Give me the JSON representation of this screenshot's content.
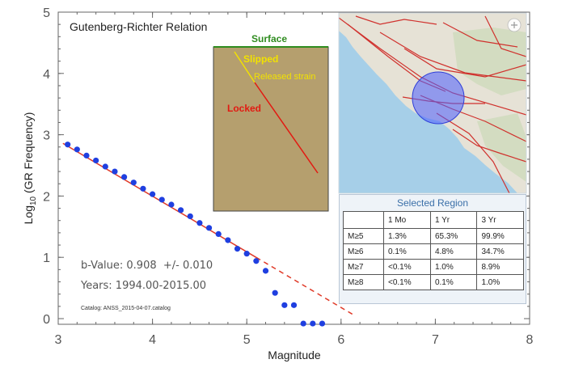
{
  "chart_data": {
    "type": "scatter",
    "title": "Gutenberg-Richter Relation",
    "xlabel": "Magnitude",
    "ylabel": "Log10 (GR Frequency)",
    "ylabel_main": "Log",
    "ylabel_sub": "10",
    "ylabel_rest": " (GR Frequency)",
    "xlim": [
      3,
      8
    ],
    "ylim": [
      0,
      5
    ],
    "xticks": [
      "3",
      "4",
      "5",
      "6",
      "7",
      "8"
    ],
    "yticks": [
      "0",
      "1",
      "2",
      "3",
      "4",
      "5"
    ],
    "points": [
      {
        "x": 3.1,
        "y": 2.84
      },
      {
        "x": 3.2,
        "y": 2.76
      },
      {
        "x": 3.3,
        "y": 2.66
      },
      {
        "x": 3.4,
        "y": 2.58
      },
      {
        "x": 3.5,
        "y": 2.48
      },
      {
        "x": 3.6,
        "y": 2.4
      },
      {
        "x": 3.7,
        "y": 2.31
      },
      {
        "x": 3.8,
        "y": 2.22
      },
      {
        "x": 3.9,
        "y": 2.12
      },
      {
        "x": 4.0,
        "y": 2.03
      },
      {
        "x": 4.1,
        "y": 1.94
      },
      {
        "x": 4.2,
        "y": 1.86
      },
      {
        "x": 4.3,
        "y": 1.77
      },
      {
        "x": 4.4,
        "y": 1.67
      },
      {
        "x": 4.5,
        "y": 1.56
      },
      {
        "x": 4.6,
        "y": 1.48
      },
      {
        "x": 4.7,
        "y": 1.38
      },
      {
        "x": 4.8,
        "y": 1.28
      },
      {
        "x": 4.9,
        "y": 1.14
      },
      {
        "x": 5.0,
        "y": 1.06
      },
      {
        "x": 5.1,
        "y": 0.94
      },
      {
        "x": 5.2,
        "y": 0.78
      },
      {
        "x": 5.3,
        "y": 0.42
      },
      {
        "x": 5.4,
        "y": 0.22
      },
      {
        "x": 5.5,
        "y": 0.22
      },
      {
        "x": 5.6,
        "y": -0.08
      },
      {
        "x": 5.7,
        "y": -0.08
      },
      {
        "x": 5.8,
        "y": -0.08
      }
    ],
    "fit_line": {
      "x0": 3.05,
      "y0": 2.86,
      "x_solid_end": 5.1,
      "x_end": 6.15,
      "slope": -0.908
    },
    "annotations": {
      "b_value": "b-Value: 0.908  +/- 0.010",
      "years": "Years: 1994.00-2015.00",
      "catalog": "Catalog: ANSS_2015-04-07.catalog"
    },
    "colors": {
      "points": "#1f3fe0",
      "fit": "#e03a28",
      "axis": "#555555"
    }
  },
  "fault_diagram": {
    "surface_label": "Surface",
    "slipped_label": "Slipped",
    "released_label": "Released strain",
    "locked_label": "Locked",
    "colors": {
      "ground": "#b59f6e",
      "surface": "#2f8c1f",
      "slipped": "#f2e200",
      "locked": "#e21a12"
    }
  },
  "map": {
    "expand_icon": "expand-icon",
    "colors": {
      "ocean": "#a6cfe8",
      "land": "#e6e2d6",
      "faults": "#d0312d",
      "region": "#3d3fe3"
    }
  },
  "region_panel": {
    "title": "Selected Region",
    "columns": [
      "",
      "1 Mo",
      "1 Yr",
      "3 Yr"
    ],
    "rows": [
      {
        "label": "M≥5",
        "mo": "1.3%",
        "yr": "65.3%",
        "yr3": "99.9%"
      },
      {
        "label": "M≥6",
        "mo": "0.1%",
        "yr": "4.8%",
        "yr3": "34.7%"
      },
      {
        "label": "M≥7",
        "mo": "<0.1%",
        "yr": "1.0%",
        "yr3": "8.9%"
      },
      {
        "label": "M≥8",
        "mo": "<0.1%",
        "yr": "0.1%",
        "yr3": "1.0%"
      }
    ]
  }
}
